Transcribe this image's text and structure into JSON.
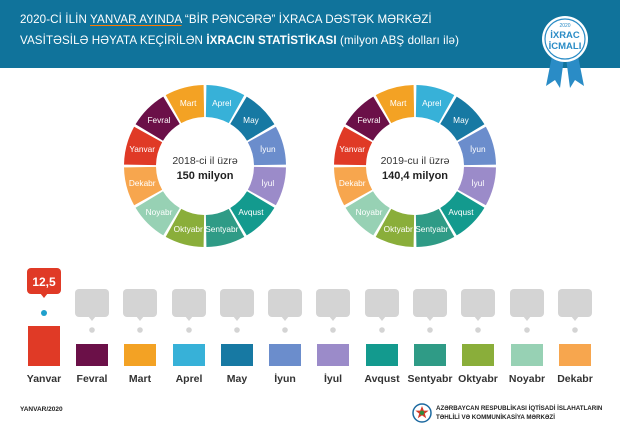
{
  "header": {
    "line1": [
      "2020-Cİ İLİN ",
      "YANVAR AYINDA",
      " “BİR PƏNCƏRƏ” İXRACA DƏSTƏK MƏRKƏZİ"
    ],
    "line2": [
      "VASİTƏSİLƏ HƏYATA KEÇİRİLƏN ",
      "İXRACIN STATİSTİKASI",
      " (milyon ABŞ dolları ilə)"
    ],
    "badge": {
      "year": "2020",
      "line1": "İXRAC",
      "line2": "İCMALI"
    }
  },
  "colors": {
    "header_bg": "#10739b",
    "placeholder": "#d4d4d4",
    "value_callout": "#e03a26",
    "months": [
      "#e03a26",
      "#6b1048",
      "#f3a224",
      "#37b1d8",
      "#1779a3",
      "#6b8dcc",
      "#9b8bc9",
      "#139a8e",
      "#2f9b86",
      "#8aae3a",
      "#97d1b4",
      "#f7a64e"
    ]
  },
  "chart_data": [
    {
      "type": "pie",
      "title": "2018-ci il üzrə",
      "total": "150 milyon",
      "categories": [
        "Yanvar",
        "Fevral",
        "Mart",
        "Aprel",
        "May",
        "İyun",
        "İyul",
        "Avqust",
        "Sentyabr",
        "Oktyabr",
        "Noyabr",
        "Dekabr"
      ],
      "values": [
        1,
        1,
        1,
        1,
        1,
        1,
        1,
        1,
        1,
        1,
        1,
        1
      ]
    },
    {
      "type": "pie",
      "title": "2019-cu il üzrə",
      "total": "140,4 milyon",
      "categories": [
        "Yanvar",
        "Fevral",
        "Mart",
        "Aprel",
        "May",
        "İyun",
        "İyul",
        "Avqust",
        "Sentyabr",
        "Oktyabr",
        "Noyabr",
        "Dekabr"
      ],
      "values": [
        1,
        1,
        1,
        1,
        1,
        1,
        1,
        1,
        1,
        1,
        1,
        1
      ]
    },
    {
      "type": "bar",
      "title": "2020",
      "categories": [
        "Yanvar",
        "Fevral",
        "Mart",
        "Aprel",
        "May",
        "İyun",
        "İyul",
        "Avqust",
        "Sentyabr",
        "Oktyabr",
        "Noyabr",
        "Dekabr"
      ],
      "values": [
        12.5,
        null,
        null,
        null,
        null,
        null,
        null,
        null,
        null,
        null,
        null,
        null
      ],
      "value_labels": [
        "12,5"
      ],
      "ylim": [
        0,
        12.5
      ]
    }
  ],
  "footer": {
    "date": "YANVAR/2020",
    "org_line1": "AZƏRBAYCAN RESPUBLİKASI İQTİSADİ İSLAHATLARIN",
    "org_line2": "TƏHLİLİ VƏ KOMMUNİKASİYA MƏRKƏZİ"
  }
}
